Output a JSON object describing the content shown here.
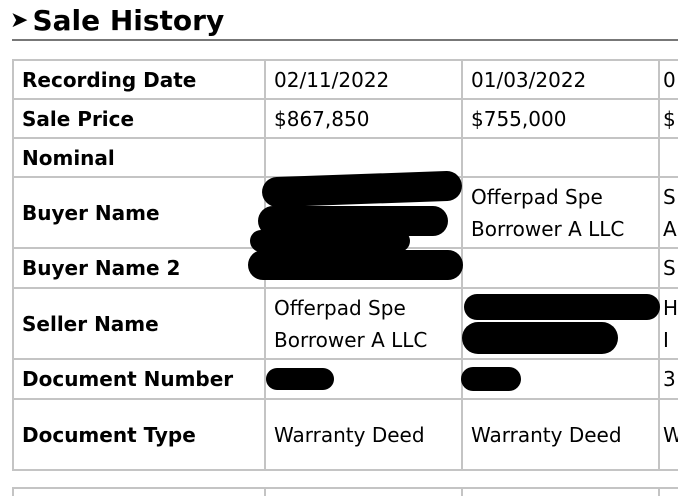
{
  "section": {
    "title": "Sale History",
    "icon": "chevron-right-icon"
  },
  "rows": [
    {
      "label": "Recording Date",
      "c1": "02/11/2022",
      "c2": "01/03/2022",
      "c3": "0"
    },
    {
      "label": "Sale Price",
      "c1": "$867,850",
      "c2": "$755,000",
      "c3": "$"
    },
    {
      "label": "Nominal",
      "c1": "",
      "c2": "",
      "c3": ""
    },
    {
      "label": "Buyer Name",
      "c1": "",
      "c2a": "Offerpad Spe",
      "c2b": "Borrower A LLC",
      "c3a": "S",
      "c3b": "A"
    },
    {
      "label": "Buyer Name 2",
      "c1": "",
      "c2": "",
      "c3": "S"
    },
    {
      "label": "Seller Name",
      "c1a": "Offerpad Spe",
      "c1b": "Borrower A LLC",
      "c2": "",
      "c3a": "H",
      "c3b": "I"
    },
    {
      "label": "Document Number",
      "c1": "",
      "c2": "",
      "c3": "3"
    },
    {
      "label": "Document Type",
      "c1": "Warranty Deed",
      "c2": "Warranty Deed",
      "c3": "W"
    }
  ]
}
